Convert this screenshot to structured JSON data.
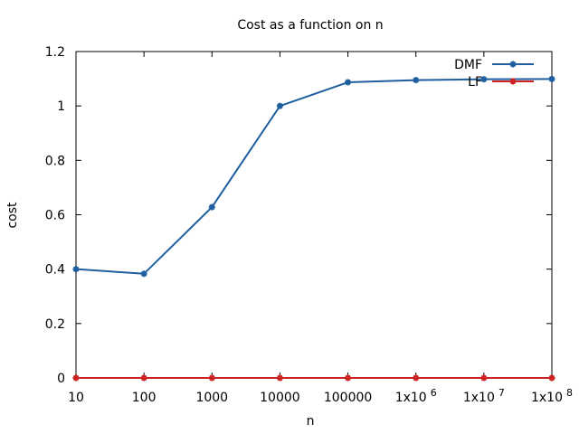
{
  "chart_data": {
    "type": "line",
    "title": "Cost as a function on n",
    "xlabel": "n",
    "ylabel": "cost",
    "x_scale": "log10",
    "x": [
      10,
      100,
      1000,
      10000,
      100000,
      1000000,
      10000000,
      100000000
    ],
    "xtick_labels": [
      {
        "base": "10",
        "sup": ""
      },
      {
        "base": "100",
        "sup": ""
      },
      {
        "base": "1000",
        "sup": ""
      },
      {
        "base": "10000",
        "sup": ""
      },
      {
        "base": "100000",
        "sup": ""
      },
      {
        "base": "1x10",
        "sup": "6"
      },
      {
        "base": "1x10",
        "sup": "7"
      },
      {
        "base": "1x10",
        "sup": "8"
      }
    ],
    "ylim": [
      0,
      1.2
    ],
    "ytick_labels": [
      "0",
      "0.2",
      "0.4",
      "0.6",
      "0.8",
      "1",
      "1.2"
    ],
    "grid": false,
    "legend_position": "top-right",
    "series": [
      {
        "name": "DMF",
        "color": "#1f5fa0",
        "values": [
          0.4,
          0.383,
          0.628,
          1.0,
          1.087,
          1.095,
          1.098,
          1.099
        ]
      },
      {
        "name": "LF",
        "color": "#cc2222",
        "values": [
          0.0,
          0.0,
          0.0,
          0.0,
          0.0,
          0.0,
          0.0,
          0.0
        ]
      }
    ]
  }
}
